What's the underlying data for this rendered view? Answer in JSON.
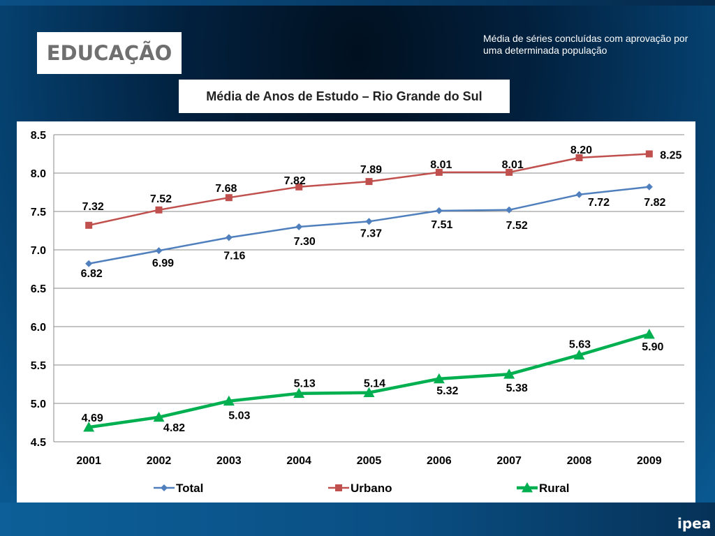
{
  "header": {
    "section_title": "EDUCAÇÃO",
    "note": "Média de séries concluídas com aprovação por uma determinada população"
  },
  "footer": {
    "logo_text": "ipea"
  },
  "colors": {
    "total": "#4f7fbd",
    "urbano": "#c0504d",
    "rural": "#00b050",
    "gridline": "#888888"
  },
  "chart_data": {
    "type": "line",
    "title": "Média de Anos de Estudo – Rio Grande do Sul",
    "xlabel": "",
    "ylabel": "",
    "categories": [
      "2001",
      "2002",
      "2003",
      "2004",
      "2005",
      "2006",
      "2007",
      "2008",
      "2009"
    ],
    "ylim": [
      4.5,
      8.5
    ],
    "yticks": [
      "4.5",
      "5.0",
      "5.5",
      "6.0",
      "6.5",
      "7.0",
      "7.5",
      "8.0",
      "8.5"
    ],
    "grid": true,
    "legend_position": "bottom",
    "series": [
      {
        "name": "Total",
        "marker": "diamond",
        "values": [
          6.82,
          6.99,
          7.16,
          7.3,
          7.37,
          7.51,
          7.52,
          7.72,
          7.82
        ],
        "labels": [
          "6.82",
          "6.99",
          "7.16",
          "7.30",
          "7.37",
          "7.51",
          "7.52",
          "7.72",
          "7.82"
        ]
      },
      {
        "name": "Urbano",
        "marker": "square",
        "values": [
          7.32,
          7.52,
          7.68,
          7.82,
          7.89,
          8.01,
          8.01,
          8.2,
          8.25
        ],
        "labels": [
          "7.32",
          "7.52",
          "7.68",
          "7.82",
          "7.89",
          "8.01",
          "8.01",
          "8.20",
          "8.25"
        ]
      },
      {
        "name": "Rural",
        "marker": "triangle",
        "values": [
          4.69,
          4.82,
          5.03,
          5.13,
          5.14,
          5.32,
          5.38,
          5.63,
          5.9
        ],
        "labels": [
          "4.69",
          "4.82",
          "5.03",
          "5.13",
          "5.14",
          "5.32",
          "5.38",
          "5.63",
          "5.90"
        ]
      }
    ]
  }
}
